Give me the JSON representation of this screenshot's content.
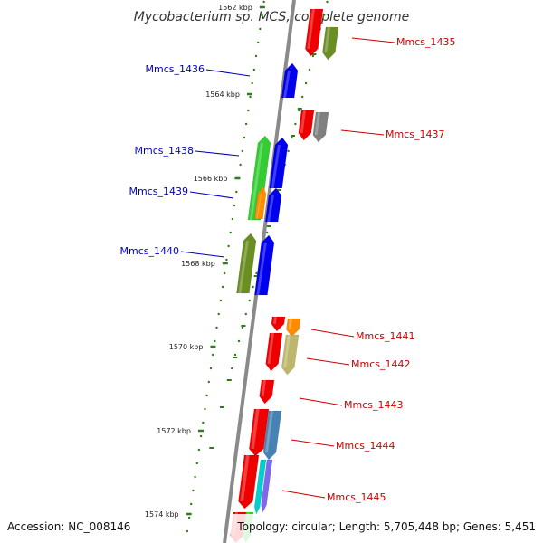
{
  "title": "Mycobacterium sp. MCS, complete genome",
  "footer": {
    "accession": "Accession: NC_008146",
    "summary": "Topology: circular; Length: 5,705,448 bp; Genes: 5,451"
  },
  "colors": {
    "backbone": "#8a8a8a",
    "tick": "#2e7d1a",
    "forward_label": "#0000bb",
    "reverse_label": "#cc0000",
    "red": "#ee0000",
    "blue": "#0000ee",
    "olive": "#6b8e23",
    "green": "#33cc33",
    "orange": "#ff8c00",
    "grey": "#808080",
    "khaki": "#bdb76b",
    "steelblue": "#4682b4",
    "cyan": "#00ced1",
    "purple": "#7b68ee"
  },
  "scale": {
    "unit": "kbp",
    "ticks": [
      {
        "label": "1562 kbp"
      },
      {
        "label": "1564 kbp"
      },
      {
        "label": "1566 kbp"
      },
      {
        "label": "1568 kbp"
      },
      {
        "label": "1570 kbp"
      },
      {
        "label": "1572 kbp"
      },
      {
        "label": "1574 kbp"
      }
    ]
  },
  "genes": [
    {
      "name": "Mmcs_1435",
      "strand": "reverse"
    },
    {
      "name": "Mmcs_1436",
      "strand": "forward"
    },
    {
      "name": "Mmcs_1437",
      "strand": "reverse"
    },
    {
      "name": "Mmcs_1438",
      "strand": "forward"
    },
    {
      "name": "Mmcs_1439",
      "strand": "forward"
    },
    {
      "name": "Mmcs_1440",
      "strand": "forward"
    },
    {
      "name": "Mmcs_1441",
      "strand": "reverse"
    },
    {
      "name": "Mmcs_1442",
      "strand": "reverse"
    },
    {
      "name": "Mmcs_1443",
      "strand": "reverse"
    },
    {
      "name": "Mmcs_1444",
      "strand": "reverse"
    },
    {
      "name": "Mmcs_1445",
      "strand": "reverse"
    }
  ]
}
